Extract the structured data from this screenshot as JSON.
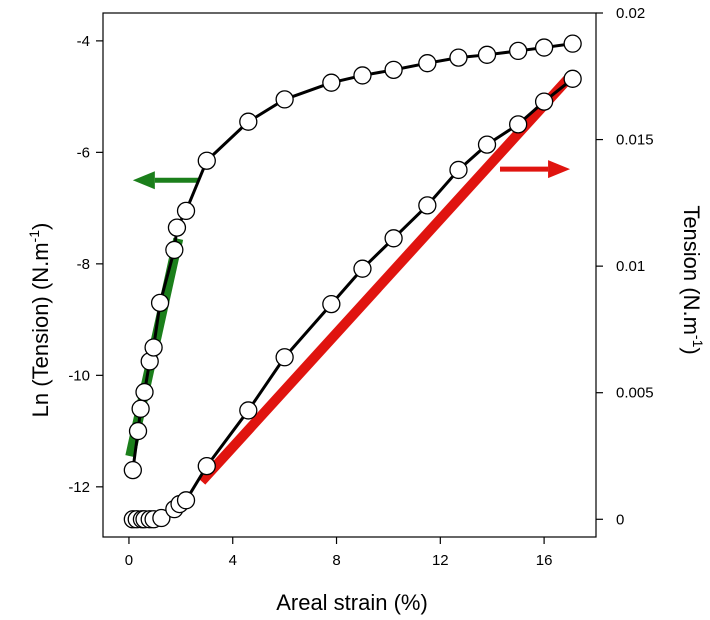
{
  "chart_data": {
    "type": "line",
    "xlabel": "Areal strain (%)",
    "ylabel_left": "Ln (Tension) (N.m",
    "ylabel_left_sup": "-1",
    "ylabel_left_close": ")",
    "ylabel_right": "Tension (N.m",
    "ylabel_right_sup": "-1",
    "ylabel_right_close": ")",
    "xlim": [
      -1,
      18
    ],
    "ylim_left": [
      -12.9,
      -3.5
    ],
    "ylim_right": [
      -0.0007,
      0.02
    ],
    "x_ticks": [
      0,
      4,
      8,
      12,
      16
    ],
    "y_left_ticks": [
      -12,
      -10,
      -8,
      -6,
      -4
    ],
    "y_right_ticks": [
      0,
      0.005,
      0.01,
      0.015,
      0.02
    ],
    "x_tick_labels": [
      "0",
      "4",
      "8",
      "12",
      "16"
    ],
    "y_left_tick_labels": [
      "-12",
      "-10",
      "-8",
      "-6",
      "-4"
    ],
    "y_right_tick_labels": [
      "0",
      "0.005",
      "0.01",
      "0.015",
      "0.02"
    ],
    "series": [
      {
        "axis": "left",
        "x": [
          0.15,
          0.35,
          0.45,
          0.6,
          0.8,
          0.95,
          1.2,
          1.75,
          1.85,
          2.2,
          3.0,
          4.6,
          6.0,
          7.8,
          9.0,
          10.2,
          11.5,
          12.7,
          13.8,
          15.0,
          16.0,
          17.1
        ],
        "y": [
          -11.7,
          -11.0,
          -10.6,
          -10.3,
          -9.75,
          -9.5,
          -8.7,
          -7.75,
          -7.35,
          -7.05,
          -6.15,
          -5.45,
          -5.05,
          -4.75,
          -4.62,
          -4.52,
          -4.4,
          -4.3,
          -4.25,
          -4.18,
          -4.12,
          -4.05
        ]
      },
      {
        "axis": "right",
        "x": [
          0.15,
          0.3,
          0.5,
          0.6,
          0.8,
          0.95,
          1.25,
          1.75,
          1.95,
          2.2,
          3.0,
          4.6,
          6.0,
          7.8,
          9.0,
          10.2,
          11.5,
          12.7,
          13.8,
          15.0,
          16.0,
          17.1
        ],
        "y": [
          0.0,
          0.0,
          0.0,
          0.0,
          0.0,
          0.0,
          5e-05,
          0.0004,
          0.0006,
          0.00075,
          0.0021,
          0.0043,
          0.0064,
          0.0085,
          0.0099,
          0.0111,
          0.0124,
          0.0138,
          0.0148,
          0.0156,
          0.0165,
          0.0174
        ]
      }
    ],
    "fits": [
      {
        "axis": "left",
        "color": "#1b7f1b",
        "x": [
          0.05,
          1.9
        ],
        "y": [
          -11.45,
          -7.55
        ]
      },
      {
        "axis": "right",
        "color": "#e0140f",
        "x": [
          2.8,
          17.1
        ],
        "y": [
          0.0015,
          0.0176
        ]
      }
    ],
    "arrows": [
      {
        "direction": "left",
        "color": "#1b7f1b",
        "x": [
          2.7,
          0.15
        ],
        "y_left": -6.5
      },
      {
        "direction": "right",
        "color": "#e0140f",
        "x": [
          14.3,
          17.0
        ],
        "y_left": -6.3
      }
    ]
  }
}
